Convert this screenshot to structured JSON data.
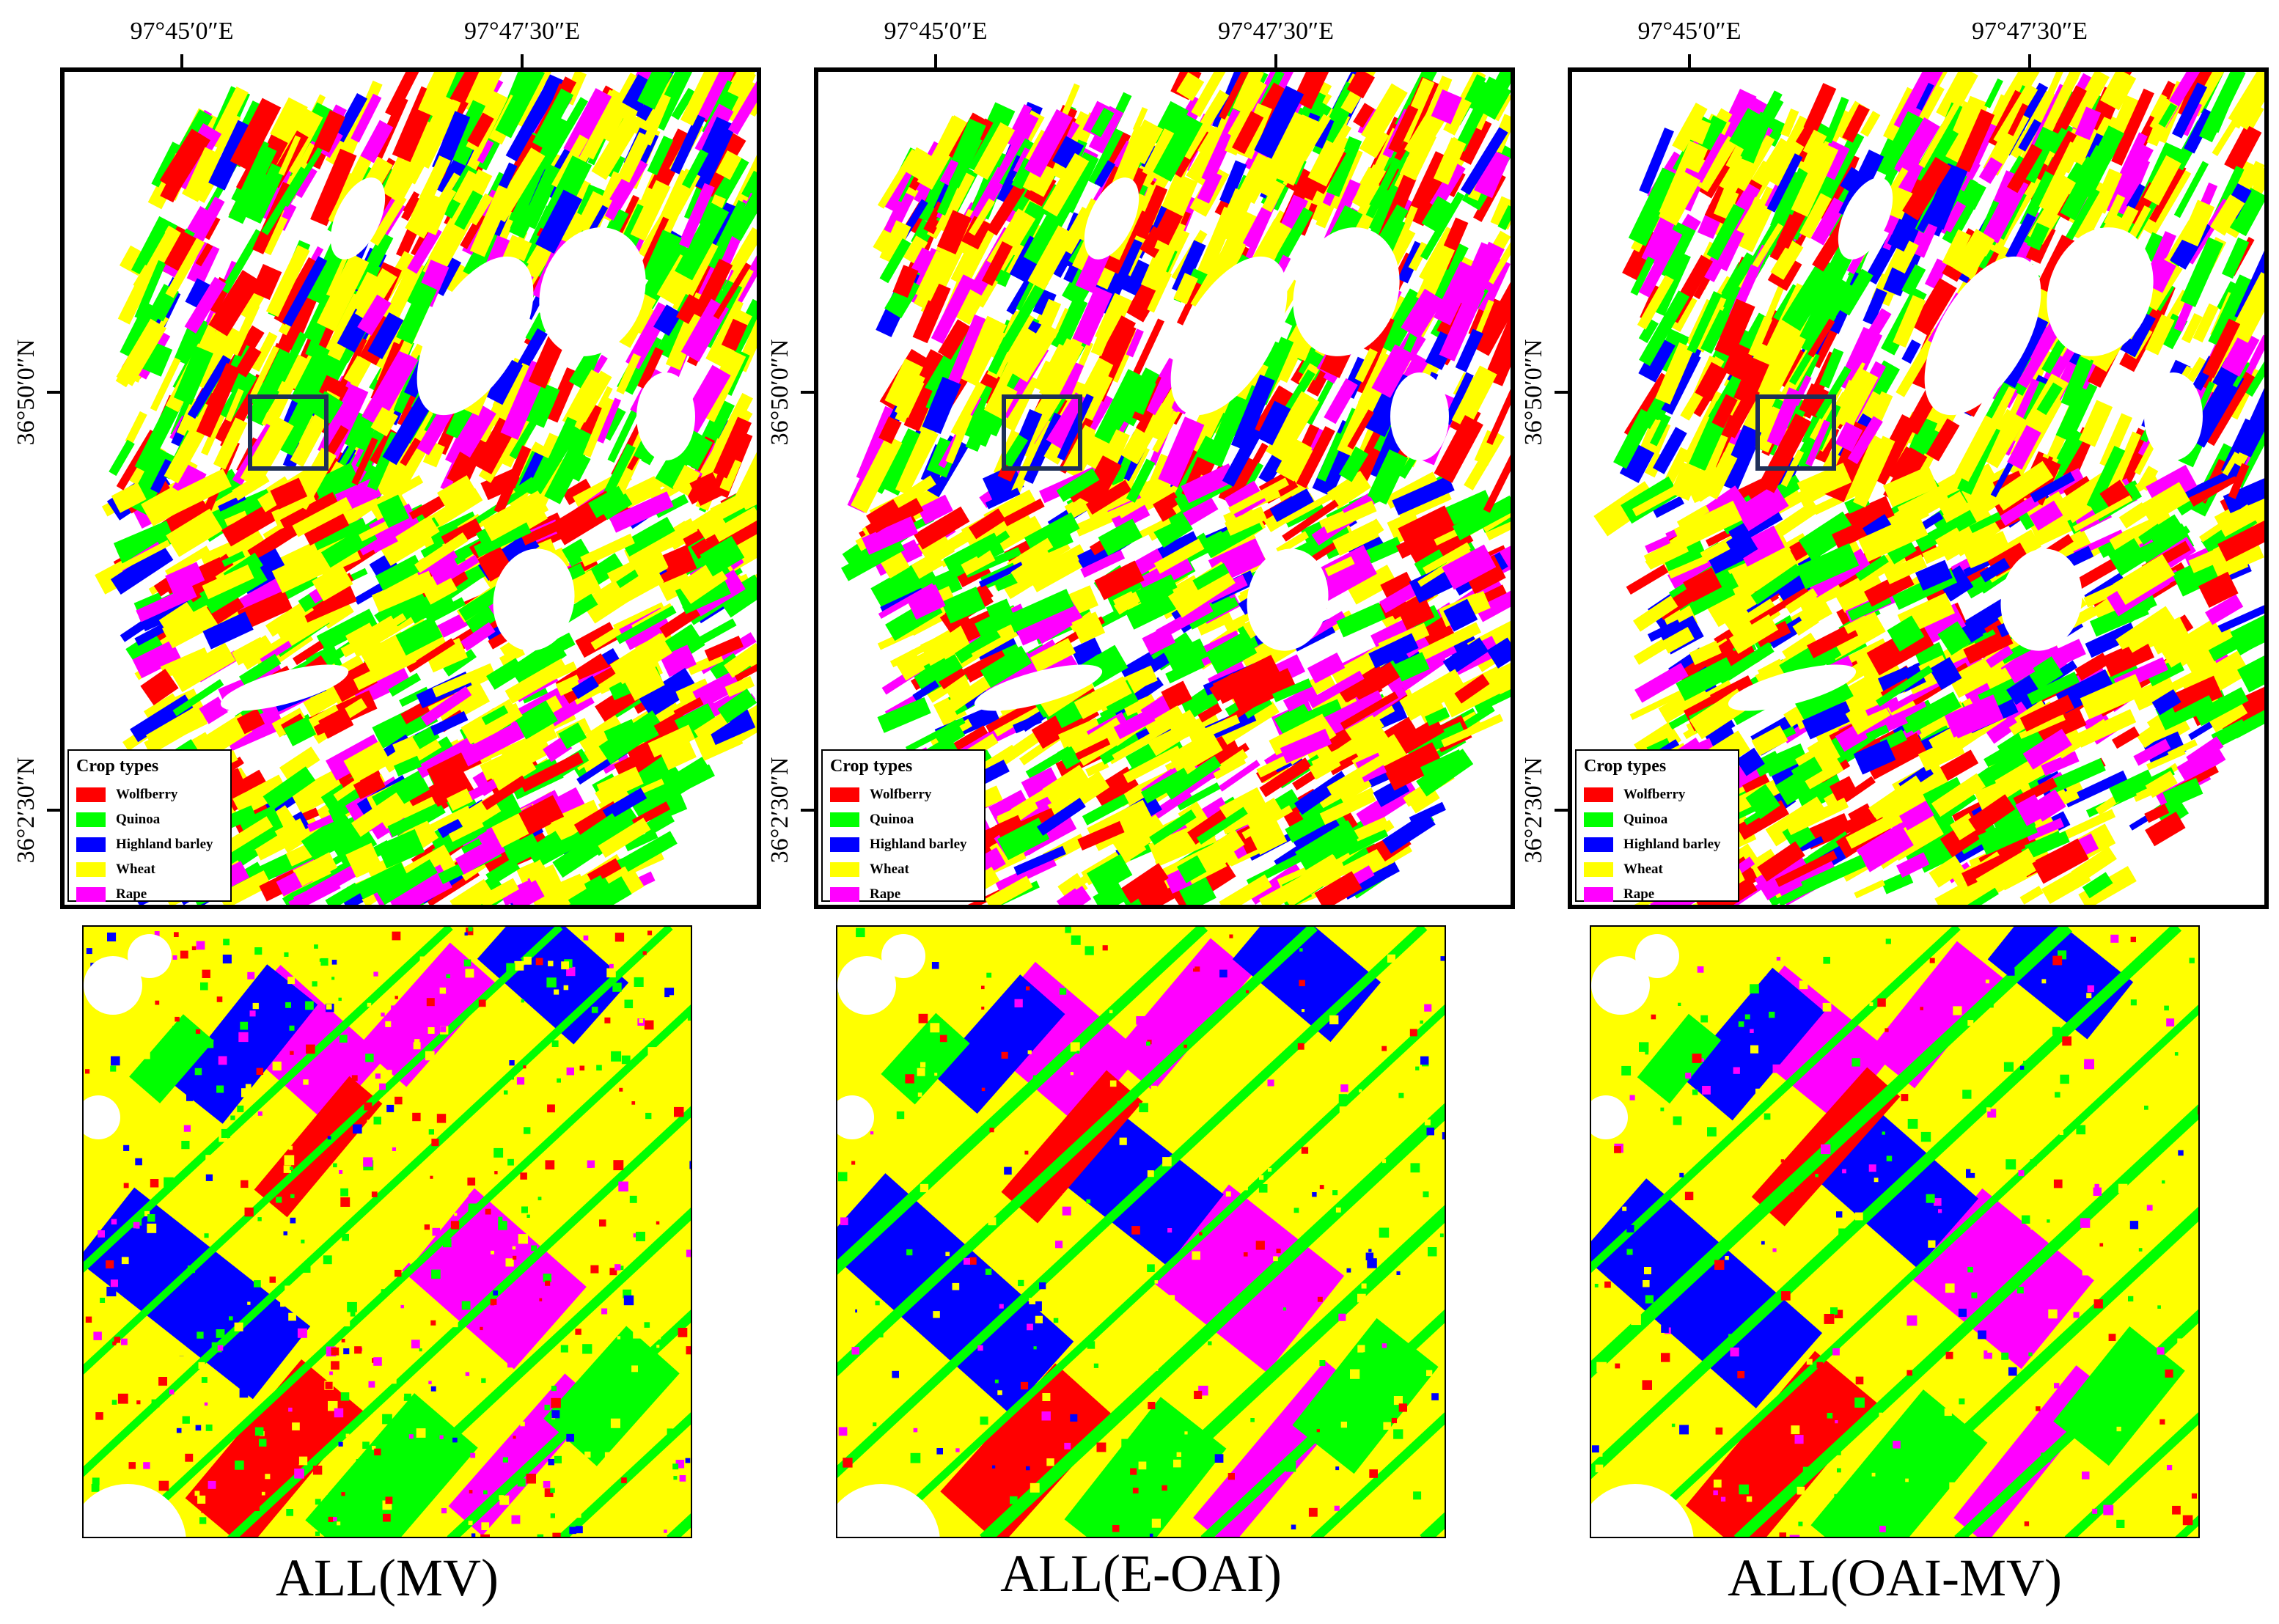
{
  "axes": {
    "lon_ticks": [
      "97°45′0″E",
      "97°47′30″E"
    ],
    "lat_ticks": [
      "36°50′0″N",
      "36°2′30″N"
    ]
  },
  "legend": {
    "title": "Crop types",
    "items": [
      {
        "label": "Wolfberry",
        "color": "#ff0000"
      },
      {
        "label": "Quinoa",
        "color": "#00ff00"
      },
      {
        "label": "Highland barley",
        "color": "#0000ff"
      },
      {
        "label": "Wheat",
        "color": "#ffff00"
      },
      {
        "label": "Rape",
        "color": "#ff00ff"
      }
    ]
  },
  "panels": [
    {
      "caption": "ALL(MV)"
    },
    {
      "caption": "ALL(E-OAI)"
    },
    {
      "caption": "ALL(OAI-MV)"
    }
  ],
  "colors": {
    "zoom_box": "#1f3057",
    "background": "#ffffff"
  }
}
